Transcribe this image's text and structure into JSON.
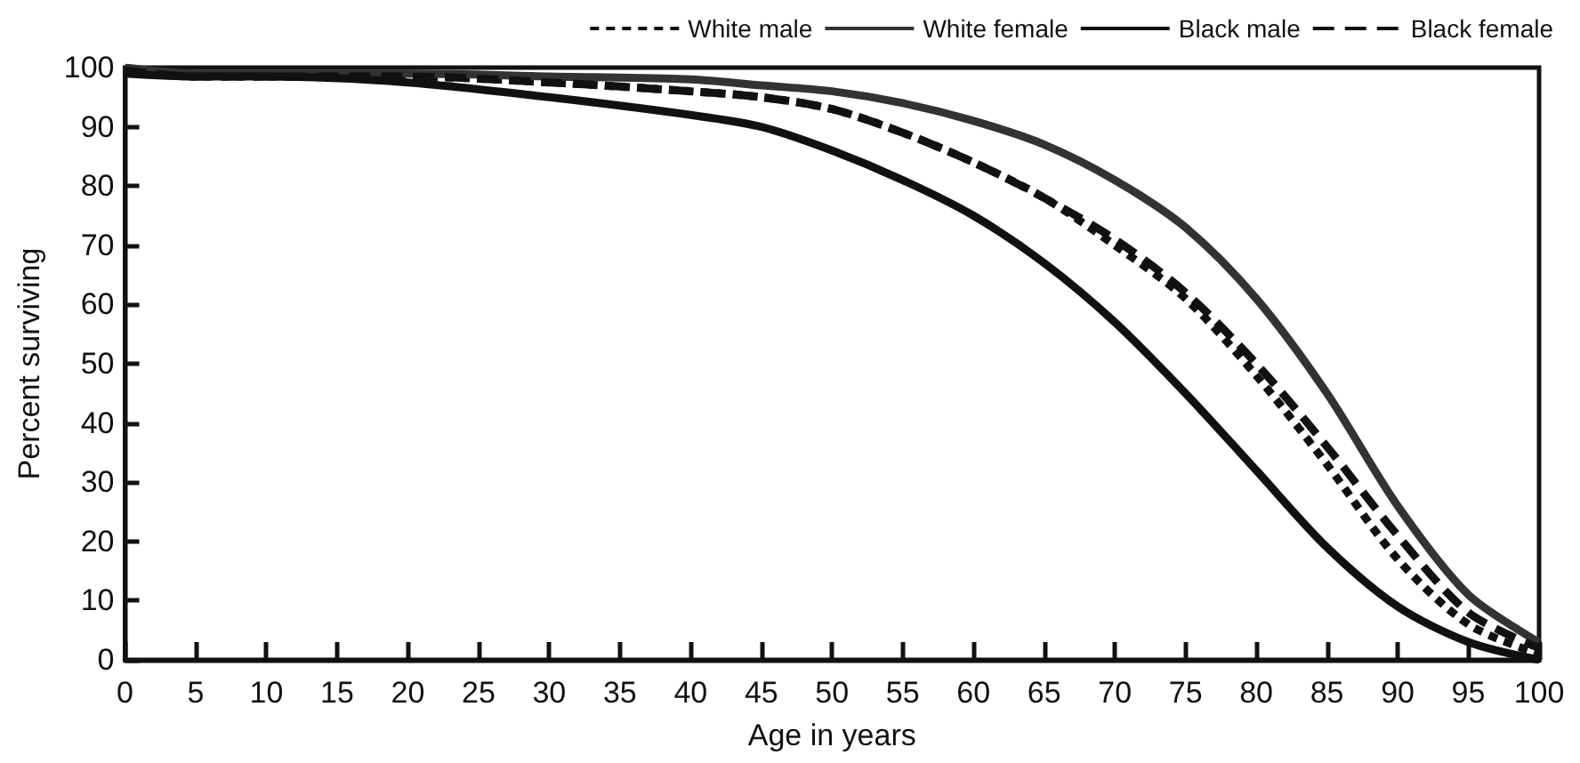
{
  "chart_data": {
    "type": "line",
    "xlabel": "Age in years",
    "ylabel": "Percent surviving",
    "x": [
      0,
      5,
      10,
      20,
      30,
      40,
      45,
      50,
      55,
      60,
      65,
      70,
      75,
      80,
      85,
      90,
      95,
      100
    ],
    "series": [
      {
        "name": "White male",
        "color": "#111111",
        "line_style": "dotted",
        "values": [
          99.5,
          98.5,
          98.5,
          98.5,
          97.5,
          96,
          95,
          93,
          89,
          84,
          78,
          70,
          61,
          48,
          33,
          17,
          6,
          1
        ]
      },
      {
        "name": "White female",
        "color": "#333333",
        "line_style": "solid",
        "values": [
          100,
          99,
          99,
          99,
          98.5,
          98,
          97,
          96,
          94,
          91,
          87,
          81,
          73,
          61,
          45,
          26,
          11,
          3
        ]
      },
      {
        "name": "Black male",
        "color": "#111111",
        "line_style": "solid",
        "values": [
          99,
          98.5,
          98.5,
          97.5,
          95,
          92,
          90,
          86,
          81,
          75,
          67,
          57,
          45,
          32,
          19,
          9,
          3,
          0
        ]
      },
      {
        "name": "Black female",
        "color": "#111111",
        "line_style": "dashed",
        "values": [
          99.5,
          98.5,
          98.5,
          98.5,
          97.5,
          96,
          95,
          93,
          89,
          84,
          78,
          71,
          62,
          50,
          36,
          21,
          8,
          2
        ]
      }
    ],
    "xlim": [
      0,
      100
    ],
    "xticks": [
      0,
      5,
      10,
      15,
      20,
      25,
      30,
      35,
      40,
      45,
      50,
      55,
      60,
      65,
      70,
      75,
      80,
      85,
      90,
      95,
      100
    ],
    "ylim": [
      0,
      100
    ],
    "yticks": [
      0,
      10,
      20,
      30,
      40,
      50,
      60,
      70,
      80,
      90,
      100
    ],
    "legend": "top right",
    "grid": false,
    "marker": "none"
  }
}
